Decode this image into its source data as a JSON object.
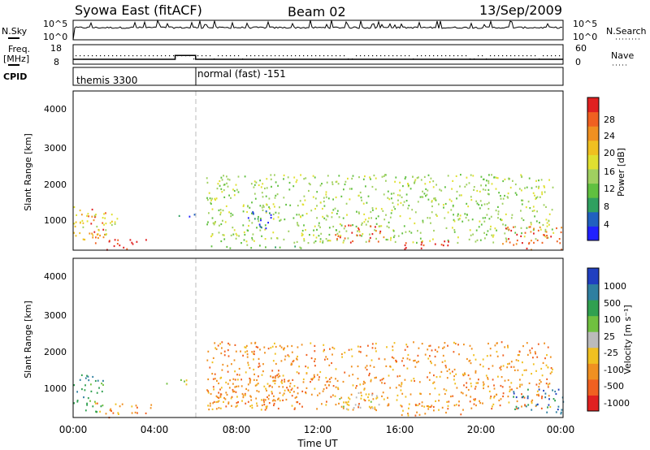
{
  "header": {
    "station": "Syowa East (fitACF)",
    "beam": "Beam 02",
    "date": "13/Sep/2009"
  },
  "sky_panel": {
    "left_label": "N.Sky",
    "right_label": "N.Search",
    "left_ticks": [
      "10^5",
      "10^0"
    ],
    "right_ticks": [
      "10^5",
      "10^0"
    ]
  },
  "freq_panel": {
    "left_label_1": "Freq.",
    "left_label_2": "[MHz]",
    "left_ticks": [
      "18",
      "8"
    ],
    "right_label": "Nave",
    "right_ticks": [
      "60",
      "0"
    ]
  },
  "cpid_panel": {
    "label": "CPID",
    "modes": [
      "themis 3300",
      "normal (fast) -151"
    ]
  },
  "x_axis": {
    "label": "Time UT",
    "ticks": [
      "00:00",
      "04:00",
      "08:00",
      "12:00",
      "16:00",
      "20:00",
      "00:00"
    ]
  },
  "power_panel": {
    "ylabel": "Slant Range [km]",
    "yticks": [
      "4000",
      "3000",
      "2000",
      "1000"
    ],
    "colorbar_label": "Power [dB]",
    "colorbar_ticks": [
      "28",
      "24",
      "20",
      "16",
      "12",
      "8",
      "4"
    ],
    "colors": [
      "#2020ff",
      "#2060c0",
      "#30a060",
      "#60c040",
      "#a0d060",
      "#e0e030",
      "#f0c020",
      "#f09020",
      "#f06020",
      "#e02020"
    ]
  },
  "velocity_panel": {
    "ylabel": "Slant Range [km]",
    "yticks": [
      "4000",
      "3000",
      "2000",
      "1000"
    ],
    "colorbar_label": "Velocity [m s⁻¹]",
    "colorbar_ticks": [
      "1000",
      "500",
      "100",
      "25",
      "-25",
      "-100",
      "-500",
      "-1000"
    ],
    "colors": [
      "#2040c0",
      "#2f7fa0",
      "#30a050",
      "#70c040",
      "#bbbbbb",
      "#f0c020",
      "#f09020",
      "#f06020",
      "#e02020"
    ]
  },
  "chart_data": [
    {
      "type": "line",
      "title": "N.Sky / N.Search",
      "x_range_hours": [
        0,
        24
      ],
      "y_scale": "log",
      "ylim": [
        1,
        100000
      ]
    },
    {
      "type": "line",
      "title": "Freq. / Nave",
      "x_range_hours": [
        0,
        24
      ],
      "freq_series": {
        "name": "Freq. [MHz]",
        "x": [
          0.0,
          5.0,
          5.0,
          6.0,
          6.0,
          24.0
        ],
        "values": [
          10.5,
          10.5,
          12.5,
          12.5,
          10.5,
          10.5
        ]
      },
      "ylim_left": [
        8,
        18
      ],
      "ylim_right": [
        0,
        60
      ]
    },
    {
      "type": "table",
      "title": "CPID",
      "segments": [
        {
          "label": "themis 3300",
          "start_hour": 0.0,
          "end_hour": 6.0
        },
        {
          "label": "normal (fast) -151",
          "start_hour": 6.0,
          "end_hour": 24.0
        }
      ]
    },
    {
      "type": "heatmap",
      "title": "Power [dB]",
      "x_range_hours": [
        0,
        24
      ],
      "ylim_km": [
        180,
        4600
      ],
      "clim": [
        0,
        30
      ],
      "regions": [
        {
          "t0": 0.0,
          "t1": 0.6,
          "r0": 300,
          "r1": 1500,
          "level": 6
        },
        {
          "t0": 0.6,
          "t1": 1.6,
          "r0": 350,
          "r1": 1400,
          "level": 8
        },
        {
          "t0": 1.6,
          "t1": 3.6,
          "r0": 200,
          "r1": 500,
          "level": 9
        },
        {
          "t0": 0.3,
          "t1": 2.2,
          "r0": 600,
          "r1": 1250,
          "level": 5
        },
        {
          "t0": 4.5,
          "t1": 6.0,
          "r0": 1100,
          "r1": 1200,
          "level": 1
        },
        {
          "t0": 6.5,
          "t1": 11.5,
          "r0": 250,
          "r1": 350,
          "level": 3
        },
        {
          "t0": 6.5,
          "t1": 23.5,
          "r0": 400,
          "r1": 2300,
          "level": 4
        },
        {
          "t0": 8.5,
          "t1": 10.0,
          "r0": 800,
          "r1": 1300,
          "level": 1
        },
        {
          "t0": 12.8,
          "t1": 15.5,
          "r0": 400,
          "r1": 900,
          "level": 8
        },
        {
          "t0": 16.0,
          "t1": 18.5,
          "r0": 220,
          "r1": 450,
          "level": 9
        },
        {
          "t0": 18.5,
          "t1": 20.5,
          "r0": 1050,
          "r1": 1250,
          "level": 3
        },
        {
          "t0": 21.0,
          "t1": 24.0,
          "r0": 200,
          "r1": 900,
          "level": 8
        }
      ]
    },
    {
      "type": "heatmap",
      "title": "Velocity [m s⁻¹]",
      "x_range_hours": [
        0,
        24
      ],
      "ylim_km": [
        180,
        4600
      ],
      "clim": [
        -1000,
        1000
      ],
      "regions": [
        {
          "t0": 0.0,
          "t1": 1.5,
          "r0": 300,
          "r1": 1400,
          "level": 2
        },
        {
          "t0": 1.0,
          "t1": 3.8,
          "r0": 200,
          "r1": 600,
          "level": 6
        },
        {
          "t0": 4.5,
          "t1": 6.0,
          "r0": 1100,
          "r1": 1250,
          "level": 4
        },
        {
          "t0": 6.5,
          "t1": 23.5,
          "r0": 400,
          "r1": 2300,
          "level": 6
        },
        {
          "t0": 7.0,
          "t1": 11.0,
          "r0": 500,
          "r1": 1400,
          "level": 6
        },
        {
          "t0": 13.0,
          "t1": 15.0,
          "r0": 400,
          "r1": 900,
          "level": 4
        },
        {
          "t0": 16.0,
          "t1": 19.0,
          "r0": 250,
          "r1": 600,
          "level": 6
        },
        {
          "t0": 21.5,
          "t1": 24.0,
          "r0": 300,
          "r1": 1000,
          "level": 1
        }
      ]
    }
  ]
}
